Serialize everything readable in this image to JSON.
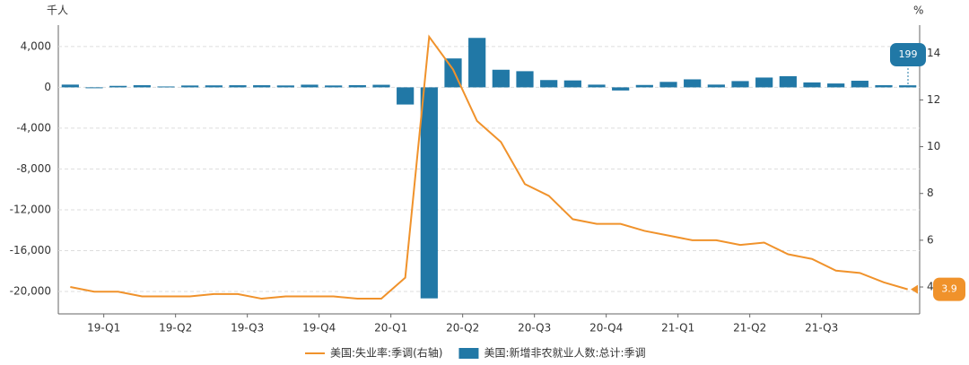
{
  "chart_data": {
    "type": "combo",
    "y_label": "千人",
    "y2_label": "%",
    "categories": [
      null,
      "19-Q1",
      null,
      null,
      "19-Q2",
      null,
      null,
      "19-Q3",
      null,
      null,
      "19-Q4",
      null,
      null,
      "20-Q1",
      null,
      null,
      "20-Q2",
      null,
      null,
      "20-Q3",
      null,
      null,
      "20-Q4",
      null,
      null,
      "21-Q1",
      null,
      null,
      "21-Q2",
      null,
      null,
      "21-Q3",
      null,
      null,
      null,
      null
    ],
    "series": [
      {
        "name": "美国:失业率:季调(右轴)",
        "type": "line",
        "axis": "y2",
        "color": "#f0922b",
        "values": [
          4.0,
          3.8,
          3.8,
          3.6,
          3.6,
          3.6,
          3.7,
          3.7,
          3.5,
          3.6,
          3.6,
          3.6,
          3.5,
          3.5,
          4.4,
          14.7,
          13.3,
          11.1,
          10.2,
          8.4,
          7.9,
          6.9,
          6.7,
          6.7,
          6.4,
          6.2,
          6.0,
          6.0,
          5.8,
          5.9,
          5.4,
          5.2,
          4.7,
          4.6,
          4.2,
          3.9
        ]
      },
      {
        "name": "美国:新增非农就业人数:总计:季调",
        "type": "bar",
        "color": "#2178a6",
        "values": [
          269,
          1,
          147,
          210,
          85,
          182,
          194,
          207,
          208,
          185,
          261,
          184,
          214,
          251,
          -1683,
          -20679,
          2833,
          4846,
          1726,
          1583,
          716,
          680,
          264,
          -306,
          233,
          536,
          785,
          269,
          614,
          962,
          1091,
          483,
          379,
          648,
          210,
          199
        ]
      }
    ],
    "ylim": [
      -22200,
      6100
    ],
    "yticks": [
      {
        "value": 4000,
        "label": "4,000"
      },
      0,
      {
        "value": -4000,
        "label": "-4,000"
      },
      {
        "value": -8000,
        "label": "-8,000"
      },
      {
        "value": -12000,
        "label": "-12,000"
      },
      {
        "value": -16000,
        "label": "-16,000"
      },
      {
        "value": -20000,
        "label": "-20,000"
      }
    ],
    "y2lim": [
      2.85,
      15.2
    ],
    "y2ticks": [
      4,
      6,
      8,
      10,
      12,
      14
    ],
    "grid": true
  }
}
